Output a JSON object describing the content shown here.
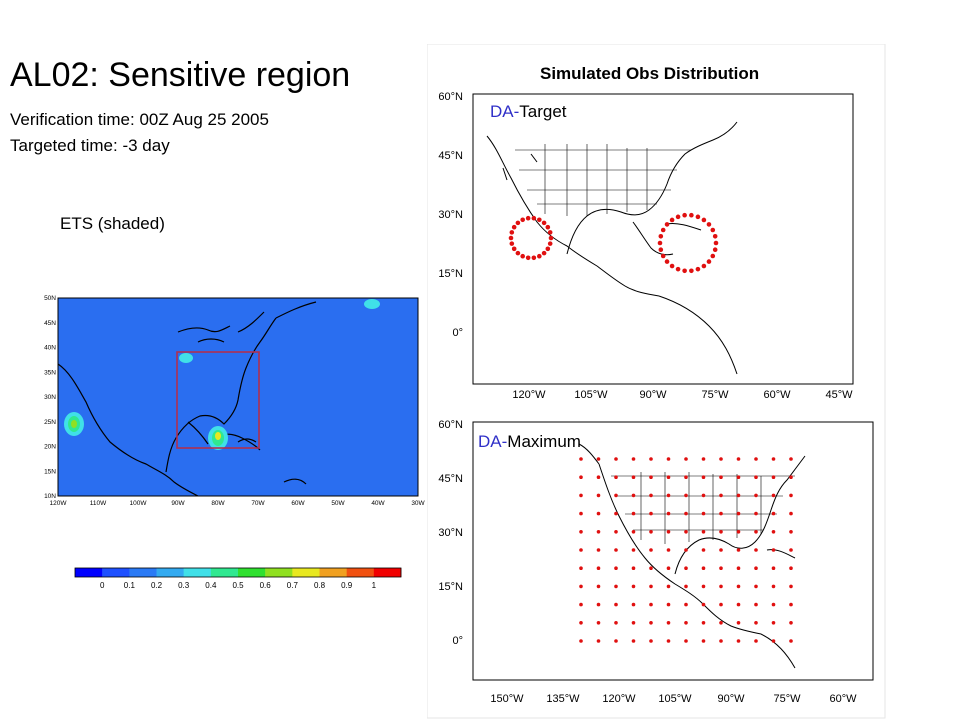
{
  "slide": {
    "title": "AL02: Sensitive region",
    "verification_time": "Verification time:  00Z Aug 25 2005",
    "targeted_time": "Targeted time: -3 day",
    "ets_label": "ETS (shaded)"
  },
  "left_map": {
    "lat_labels": [
      "50N",
      "45N",
      "40N",
      "35N",
      "30N",
      "25N",
      "20N",
      "15N",
      "10N"
    ],
    "lon_labels": [
      "120W",
      "110W",
      "100W",
      "90W",
      "80W",
      "70W",
      "60W",
      "50W",
      "40W",
      "30W"
    ],
    "colors": {
      "background": "#2a6ef0",
      "box": "#b03050",
      "coast": "#000000"
    }
  },
  "colorbar": {
    "tick_labels": [
      "0",
      "0.1",
      "0.2",
      "0.3",
      "0.4",
      "0.5",
      "0.6",
      "0.7",
      "0.8",
      "0.9",
      "1"
    ],
    "colors": [
      "#0000ff",
      "#1e50ff",
      "#2a7af5",
      "#33aaf0",
      "#40e0e8",
      "#30e890",
      "#30e030",
      "#90e020",
      "#e8e820",
      "#f0a020",
      "#f05010",
      "#f00000"
    ]
  },
  "right_panel": {
    "title": "Simulated Obs Distribution",
    "top_map": {
      "label_prefix": "DA-",
      "label_suffix": "Target",
      "lat_labels": [
        "60°N",
        "45°N",
        "30°N",
        "15°N",
        "0°"
      ],
      "lon_labels": [
        "120°W",
        "105°W",
        "90°W",
        "75°W",
        "60°W",
        "45°W"
      ]
    },
    "bottom_map": {
      "label_prefix": "DA-",
      "label_suffix": "Maximum",
      "lat_labels": [
        "60°N",
        "45°N",
        "30°N",
        "15°N",
        "0°"
      ],
      "lon_labels": [
        "150°W",
        "135°W",
        "120°W",
        "105°W",
        "90°W",
        "75°W",
        "60°W"
      ]
    },
    "obs_color": "#e01010"
  }
}
